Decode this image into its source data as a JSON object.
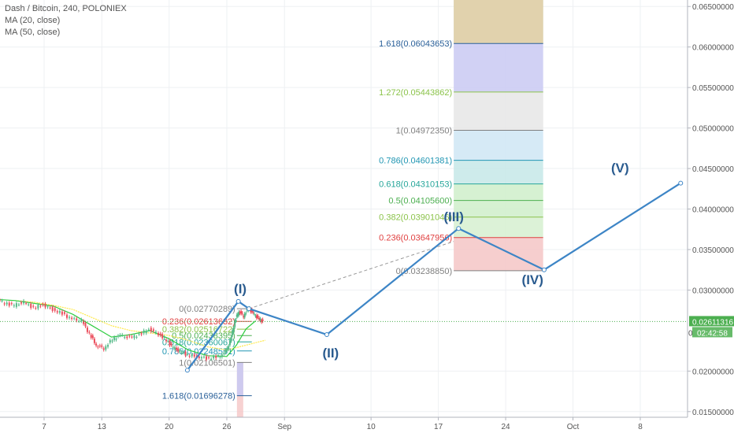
{
  "legend": {
    "title": "Dash / Bitcoin, 240, POLONIEX",
    "ma20": "MA (20, close)",
    "ma50": "MA (50, close)"
  },
  "colors": {
    "wave": "#3d85c6",
    "candle_up": "#53b987",
    "candle_down": "#eb4d5c",
    "ma20": "#ffe94a",
    "ma50": "#2ecc40",
    "price_line": "#4caf50",
    "axis_text": "#555555"
  },
  "chart_data": {
    "type": "line",
    "title": "Dash / Bitcoin, 240, POLONIEX",
    "y_axis": {
      "range": [
        0.0143,
        0.0658
      ],
      "ticks": [
        {
          "value": 0.065,
          "label": "0.06500000"
        },
        {
          "value": 0.06,
          "label": "0.06000000"
        },
        {
          "value": 0.055,
          "label": "0.05500000"
        },
        {
          "value": 0.05,
          "label": "0.05000000"
        },
        {
          "value": 0.045,
          "label": "0.04500000"
        },
        {
          "value": 0.04,
          "label": "0.04000000"
        },
        {
          "value": 0.035,
          "label": "0.03500000"
        },
        {
          "value": 0.03,
          "label": "0.03000000"
        },
        {
          "value": 0.02,
          "label": "0.02000000"
        },
        {
          "value": 0.015,
          "label": "0.01500000"
        }
      ]
    },
    "x_axis": {
      "range_days": [
        -7.4,
        46.0
      ],
      "ticks": [
        {
          "day": 7,
          "label": "7"
        },
        {
          "day": 13,
          "label": "13"
        },
        {
          "day": 20,
          "label": "20"
        },
        {
          "day": 26,
          "label": "26"
        },
        {
          "day": 32,
          "label": "Sep"
        },
        {
          "day": 41,
          "label": "10"
        },
        {
          "day": 48,
          "label": "17"
        },
        {
          "day": 55,
          "label": "24"
        },
        {
          "day": 62,
          "label": "Oct"
        },
        {
          "day": 69,
          "label": "8"
        }
      ]
    },
    "current_price": {
      "value": 0.02611316,
      "label": "0.02611316",
      "countdown": "02:42:58",
      "extra_label": "0"
    },
    "wave_labels": [
      {
        "label": "(I)",
        "day": 27.4,
        "value": 0.0296
      },
      {
        "label": "(II)",
        "day": 36.8,
        "value": 0.0217
      },
      {
        "label": "(III)",
        "day": 49.6,
        "value": 0.0385
      },
      {
        "label": "(IV)",
        "day": 57.8,
        "value": 0.0307
      },
      {
        "label": "(V)",
        "day": 66.9,
        "value": 0.0445
      }
    ],
    "wave_points": [
      {
        "day": 21.9,
        "value": 0.0201
      },
      {
        "day": 27.2,
        "value": 0.0286
      },
      {
        "day": 28.3,
        "value": 0.0277
      },
      {
        "day": 36.4,
        "value": 0.0245
      },
      {
        "day": 50.1,
        "value": 0.0376
      },
      {
        "day": 59.0,
        "value": 0.0325
      },
      {
        "day": 73.2,
        "value": 0.0432
      }
    ],
    "fib_extension": {
      "day_start": 49.6,
      "day_end": 58.9,
      "levels": [
        {
          "ratio": 0,
          "label": "0(0.03238850)",
          "value": 0.0323885,
          "color": "#808080",
          "fill": "#f5c6c6"
        },
        {
          "ratio": 0.236,
          "label": "0.236(0.03647956)",
          "value": 0.03647956,
          "color": "#e04040",
          "fill": "#d6f0d0"
        },
        {
          "ratio": 0.382,
          "label": "0.382(0.03901046)",
          "value": 0.03901046,
          "color": "#8bc34a",
          "fill": "#cfeeca"
        },
        {
          "ratio": 0.5,
          "label": "0.5(0.04105600)",
          "value": 0.041056,
          "color": "#4caf50",
          "fill": "#cfeeca"
        },
        {
          "ratio": 0.618,
          "label": "0.618(0.04310153)",
          "value": 0.04310153,
          "color": "#26a69a",
          "fill": "#c5e8e8"
        },
        {
          "ratio": 0.786,
          "label": "0.786(0.04601381)",
          "value": 0.04601381,
          "color": "#2196b3",
          "fill": "#cfe6f5"
        },
        {
          "ratio": 1,
          "label": "1(0.04972350)",
          "value": 0.0497235,
          "color": "#808080",
          "fill": "#e6e6e6"
        },
        {
          "ratio": 1.272,
          "label": "1.272(0.05443862)",
          "value": 0.05443862,
          "color": "#8bc34a",
          "fill": "#c9c9f2"
        },
        {
          "ratio": 1.618,
          "label": "1.618(0.06043653)",
          "value": 0.06043653,
          "color": "#2a6099",
          "fill": "#c4d8c8"
        },
        {
          "ratio": 2.0,
          "label": "",
          "value": 0.0658,
          "color": "#c9a56a",
          "fill": "#e3d0a8"
        }
      ]
    },
    "fib_retracement": {
      "day_start": 27.3,
      "day_end": 28.6,
      "levels": [
        {
          "label": "0(0.02770289)",
          "value": 0.02770289,
          "color": "#808080"
        },
        {
          "label": "0.236(0.02613632)",
          "value": 0.02613632,
          "color": "#e04040"
        },
        {
          "label": "0.382(0.02516722)",
          "value": 0.02516722,
          "color": "#8bc34a"
        },
        {
          "label": "0.5(0.02438395)",
          "value": 0.02438395,
          "color": "#4caf50"
        },
        {
          "label": "0.618(0.02360067)",
          "value": 0.02360067,
          "color": "#26a69a"
        },
        {
          "label": "0.786(0.02248551)",
          "value": 0.02248551,
          "color": "#2196b3"
        },
        {
          "label": "1(0.02106501)",
          "value": 0.02106501,
          "color": "#808080"
        },
        {
          "label": "1.618(0.01696278)",
          "value": 0.01696278,
          "color": "#2a6099"
        }
      ]
    },
    "price_series": [
      {
        "day": -7.4,
        "value": 0.0284
      },
      {
        "day": -6,
        "value": 0.0286
      },
      {
        "day": -5,
        "value": 0.0283
      },
      {
        "day": -4,
        "value": 0.0288
      },
      {
        "day": -3,
        "value": 0.0292
      },
      {
        "day": -2,
        "value": 0.0294
      },
      {
        "day": -1,
        "value": 0.029
      },
      {
        "day": 0,
        "value": 0.0288
      },
      {
        "day": 1,
        "value": 0.0286
      },
      {
        "day": 2,
        "value": 0.0289
      },
      {
        "day": 3,
        "value": 0.0284
      },
      {
        "day": 4,
        "value": 0.0281
      },
      {
        "day": 5,
        "value": 0.0285
      },
      {
        "day": 6,
        "value": 0.0278
      },
      {
        "day": 7,
        "value": 0.0282
      },
      {
        "day": 8,
        "value": 0.0276
      },
      {
        "day": 9,
        "value": 0.0271
      },
      {
        "day": 10,
        "value": 0.0264
      },
      {
        "day": 11,
        "value": 0.0262
      },
      {
        "day": 11.8,
        "value": 0.0246
      },
      {
        "day": 12.5,
        "value": 0.0232
      },
      {
        "day": 13.3,
        "value": 0.0228
      },
      {
        "day": 14.2,
        "value": 0.0239
      },
      {
        "day": 15,
        "value": 0.0244
      },
      {
        "day": 16,
        "value": 0.0241
      },
      {
        "day": 17,
        "value": 0.0245
      },
      {
        "day": 18,
        "value": 0.0252
      },
      {
        "day": 19,
        "value": 0.0246
      },
      {
        "day": 19.8,
        "value": 0.0238
      },
      {
        "day": 20.5,
        "value": 0.0229
      },
      {
        "day": 21.2,
        "value": 0.0224
      },
      {
        "day": 22,
        "value": 0.022
      },
      {
        "day": 23,
        "value": 0.0218
      },
      {
        "day": 24,
        "value": 0.0216
      },
      {
        "day": 25,
        "value": 0.0217
      },
      {
        "day": 25.8,
        "value": 0.0221
      },
      {
        "day": 26.4,
        "value": 0.0236
      },
      {
        "day": 26.9,
        "value": 0.0262
      },
      {
        "day": 27.3,
        "value": 0.0274
      },
      {
        "day": 27.8,
        "value": 0.0268
      },
      {
        "day": 28.3,
        "value": 0.0278
      },
      {
        "day": 28.8,
        "value": 0.0271
      },
      {
        "day": 29.3,
        "value": 0.0265
      },
      {
        "day": 29.8,
        "value": 0.0261
      }
    ],
    "ma20_series": [
      {
        "day": 4,
        "value": 0.0287
      },
      {
        "day": 6,
        "value": 0.0285
      },
      {
        "day": 8,
        "value": 0.0281
      },
      {
        "day": 10,
        "value": 0.0276
      },
      {
        "day": 12,
        "value": 0.0266
      },
      {
        "day": 14,
        "value": 0.0256
      },
      {
        "day": 16,
        "value": 0.025
      },
      {
        "day": 18,
        "value": 0.0247
      },
      {
        "day": 20,
        "value": 0.0244
      },
      {
        "day": 22,
        "value": 0.0238
      },
      {
        "day": 24,
        "value": 0.023
      },
      {
        "day": 26,
        "value": 0.0226
      },
      {
        "day": 28,
        "value": 0.0232
      },
      {
        "day": 30,
        "value": 0.0238
      }
    ],
    "ma50_series": [
      {
        "day": -7.4,
        "value": 0.0278
      },
      {
        "day": -4,
        "value": 0.0285
      },
      {
        "day": 0,
        "value": 0.029
      },
      {
        "day": 4,
        "value": 0.0287
      },
      {
        "day": 8,
        "value": 0.028
      },
      {
        "day": 10,
        "value": 0.027
      },
      {
        "day": 12,
        "value": 0.0256
      },
      {
        "day": 14,
        "value": 0.0242
      },
      {
        "day": 16,
        "value": 0.0245
      },
      {
        "day": 18,
        "value": 0.025
      },
      {
        "day": 20,
        "value": 0.024
      },
      {
        "day": 22,
        "value": 0.0226
      },
      {
        "day": 24,
        "value": 0.0219
      },
      {
        "day": 26,
        "value": 0.0218
      },
      {
        "day": 27,
        "value": 0.0232
      },
      {
        "day": 28,
        "value": 0.0252
      },
      {
        "day": 29,
        "value": 0.0262
      }
    ],
    "projection_line": {
      "from_day": 28.3,
      "from_value": 0.0277,
      "to_day": 49.6,
      "to_value": 0.036
    },
    "grid": true
  }
}
